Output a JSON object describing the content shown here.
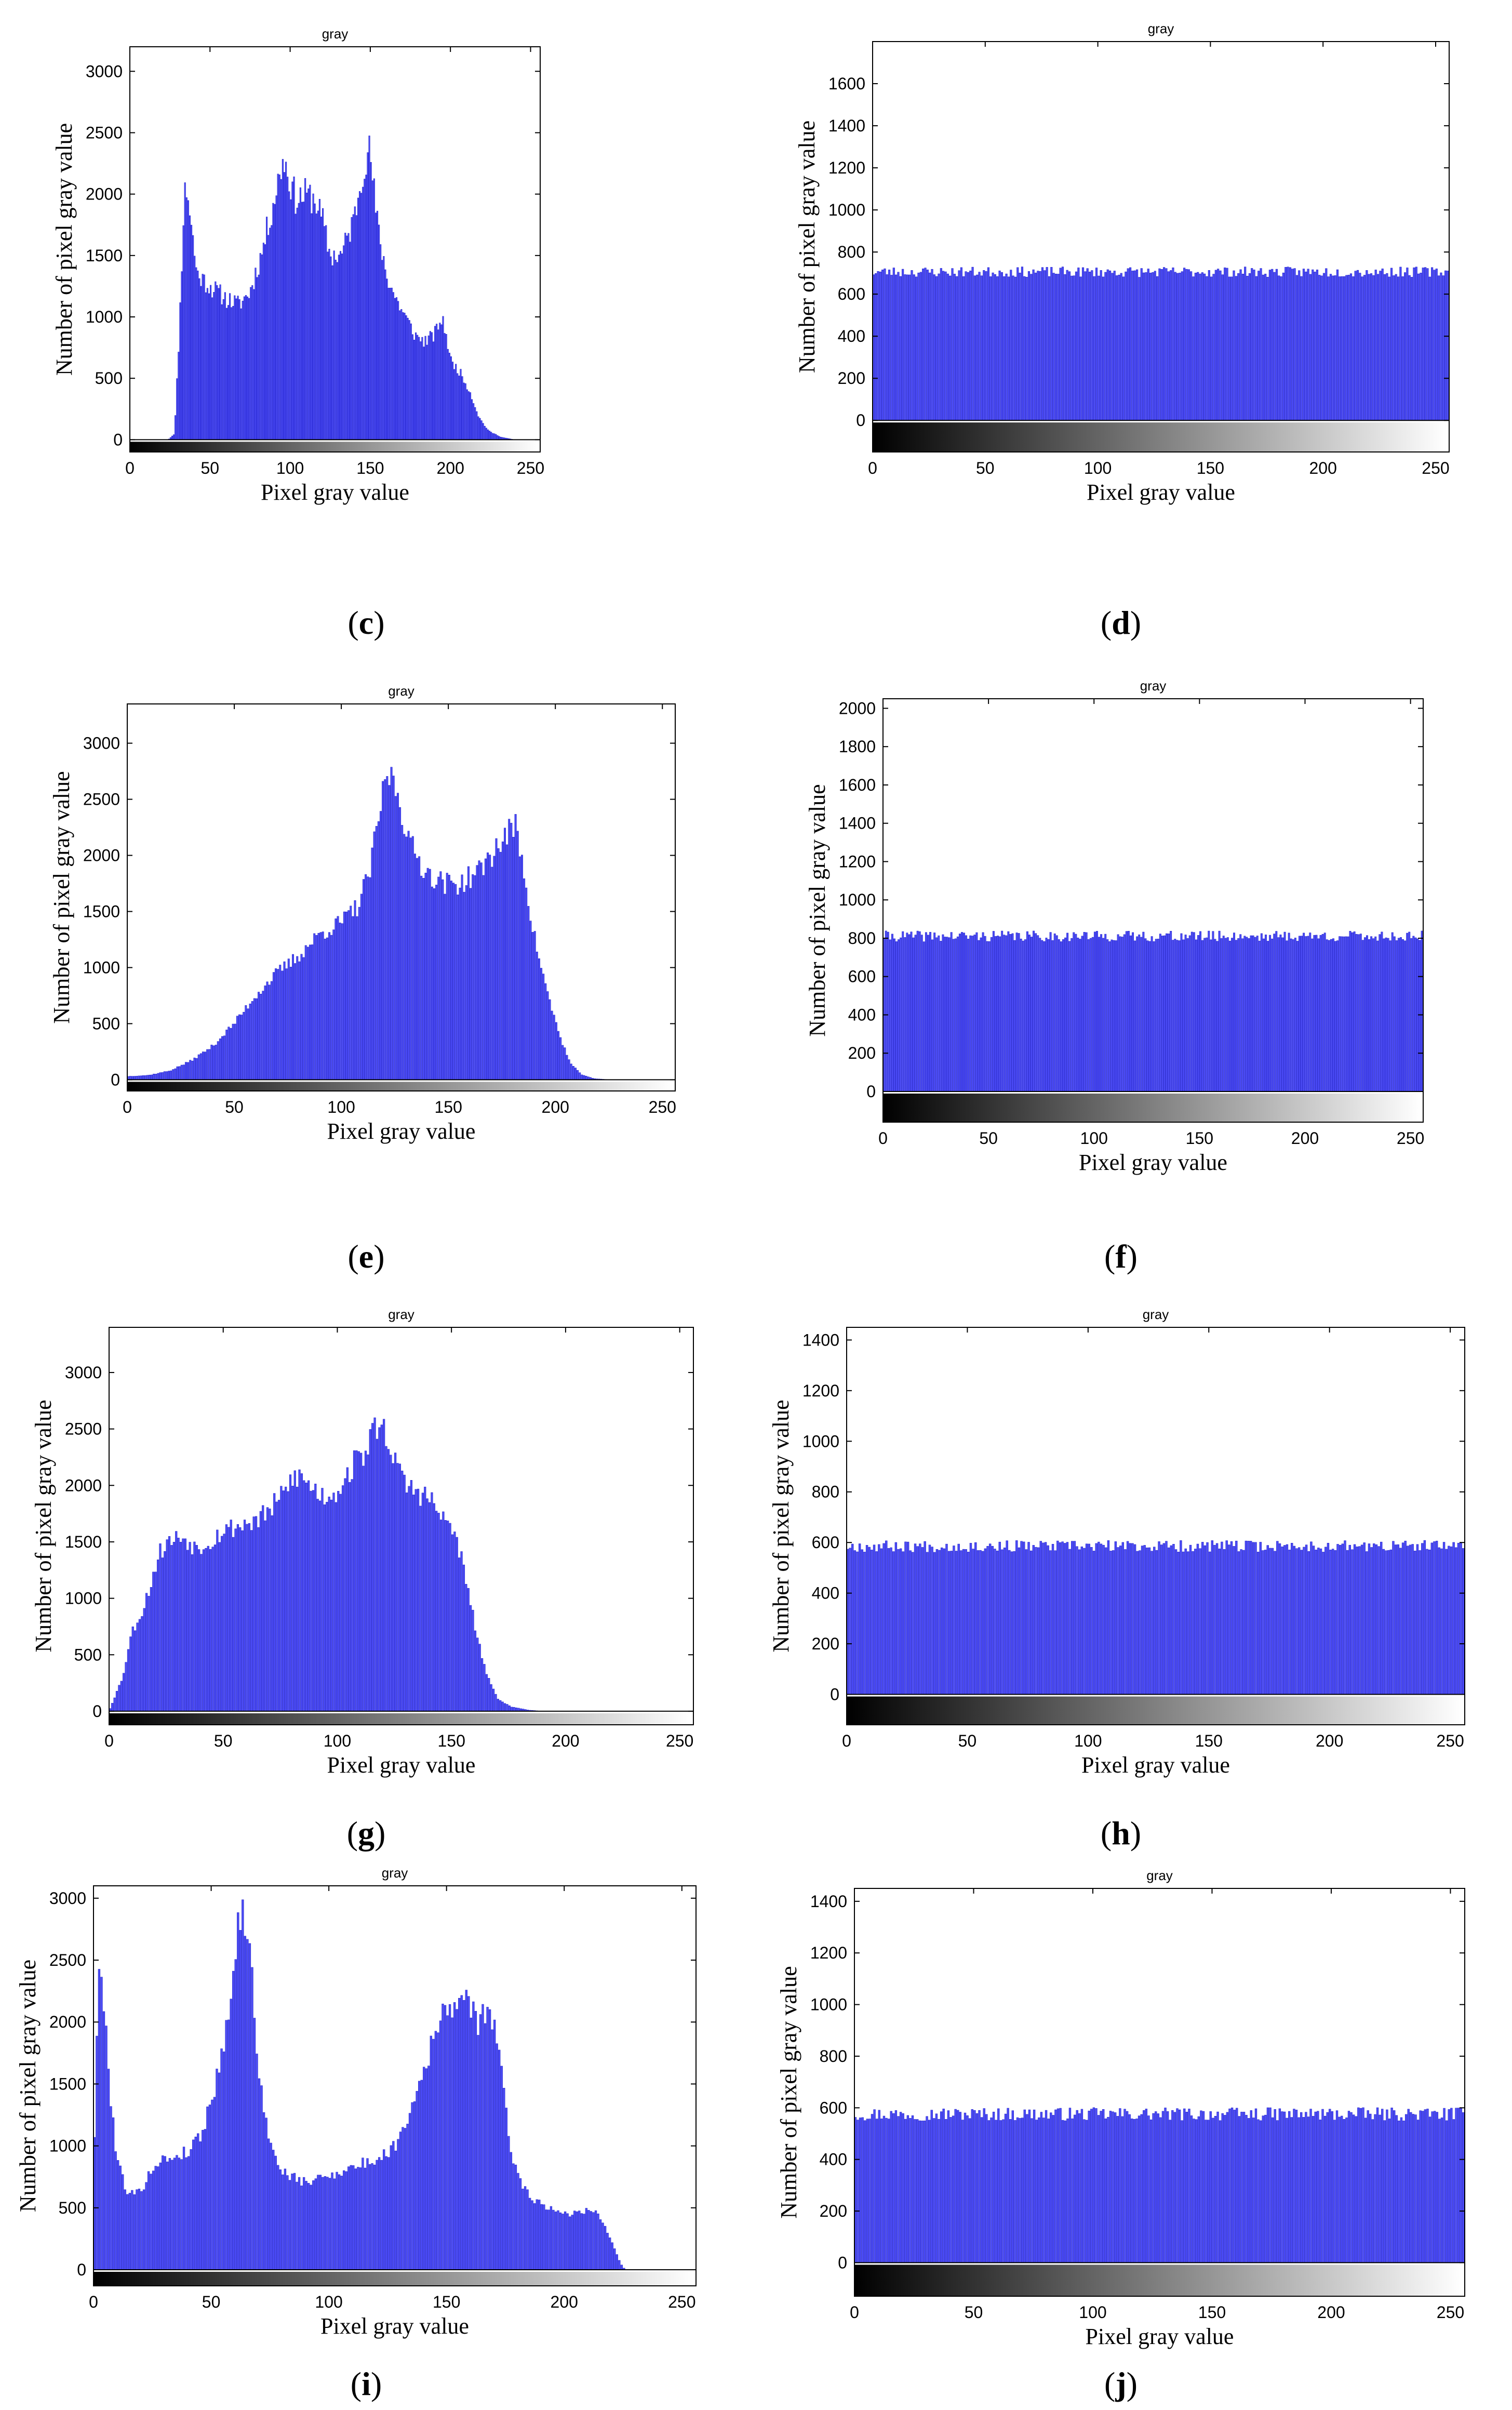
{
  "figure": {
    "panels": [
      "c",
      "d",
      "e",
      "f",
      "g",
      "h",
      "i",
      "j"
    ]
  },
  "colors": {
    "bar": "#4b4bf5",
    "bar_edge": "#1e1ec8",
    "axis": "#000000"
  },
  "chart_data": [
    {
      "id": "c",
      "type": "bar",
      "title": "gray",
      "xlabel": "Pixel gray value",
      "ylabel": "Number of pixel gray value",
      "xlim": [
        0,
        256
      ],
      "ylim": [
        -100,
        3200
      ],
      "xticks": [
        0,
        50,
        100,
        150,
        200,
        250
      ],
      "yticks": [
        0,
        500,
        1000,
        1500,
        2000,
        2500,
        3000
      ],
      "profile": [
        [
          0,
          0
        ],
        [
          24,
          0
        ],
        [
          28,
          50
        ],
        [
          31,
          900
        ],
        [
          34,
          2000
        ],
        [
          36,
          2050
        ],
        [
          38,
          1800
        ],
        [
          42,
          1350
        ],
        [
          50,
          1250
        ],
        [
          60,
          1150
        ],
        [
          68,
          1100
        ],
        [
          75,
          1200
        ],
        [
          82,
          1500
        ],
        [
          90,
          1950
        ],
        [
          96,
          2300
        ],
        [
          100,
          2100
        ],
        [
          104,
          1950
        ],
        [
          110,
          2000
        ],
        [
          116,
          1950
        ],
        [
          120,
          1800
        ],
        [
          125,
          1500
        ],
        [
          132,
          1500
        ],
        [
          140,
          1800
        ],
        [
          146,
          2250
        ],
        [
          150,
          2350
        ],
        [
          154,
          1800
        ],
        [
          160,
          1350
        ],
        [
          166,
          1150
        ],
        [
          172,
          1000
        ],
        [
          178,
          850
        ],
        [
          184,
          800
        ],
        [
          190,
          850
        ],
        [
          194,
          980
        ],
        [
          197,
          900
        ],
        [
          200,
          650
        ],
        [
          206,
          550
        ],
        [
          212,
          400
        ],
        [
          218,
          180
        ],
        [
          224,
          70
        ],
        [
          232,
          20
        ],
        [
          240,
          0
        ],
        [
          256,
          0
        ]
      ],
      "noise": 0.07,
      "seed": 11
    },
    {
      "id": "d",
      "type": "bar",
      "title": "gray",
      "xlabel": "Pixel gray value",
      "ylabel": "Number of pixel gray value",
      "xlim": [
        0,
        256
      ],
      "ylim": [
        -150,
        1800
      ],
      "xticks": [
        0,
        50,
        100,
        150,
        200,
        250
      ],
      "yticks": [
        0,
        200,
        400,
        600,
        800,
        1000,
        1200,
        1400,
        1600
      ],
      "profile": [
        [
          0,
          705
        ],
        [
          256,
          705
        ]
      ],
      "noise": 0.035,
      "seed": 23
    },
    {
      "id": "e",
      "type": "bar",
      "title": "gray",
      "xlabel": "Pixel gray value",
      "ylabel": "Number of pixel gray value",
      "xlim": [
        0,
        256
      ],
      "ylim": [
        -100,
        3350
      ],
      "xticks": [
        0,
        50,
        100,
        150,
        200,
        250
      ],
      "yticks": [
        0,
        500,
        1000,
        1500,
        2000,
        2500,
        3000
      ],
      "profile": [
        [
          0,
          30
        ],
        [
          10,
          40
        ],
        [
          20,
          80
        ],
        [
          30,
          170
        ],
        [
          40,
          300
        ],
        [
          50,
          500
        ],
        [
          60,
          750
        ],
        [
          70,
          950
        ],
        [
          80,
          1100
        ],
        [
          90,
          1300
        ],
        [
          100,
          1400
        ],
        [
          108,
          1550
        ],
        [
          114,
          1900
        ],
        [
          118,
          2400
        ],
        [
          122,
          2750
        ],
        [
          126,
          2600
        ],
        [
          132,
          2100
        ],
        [
          140,
          1850
        ],
        [
          148,
          1750
        ],
        [
          156,
          1750
        ],
        [
          164,
          1850
        ],
        [
          172,
          2050
        ],
        [
          178,
          2200
        ],
        [
          182,
          2250
        ],
        [
          186,
          1800
        ],
        [
          190,
          1300
        ],
        [
          196,
          800
        ],
        [
          202,
          400
        ],
        [
          207,
          150
        ],
        [
          212,
          50
        ],
        [
          218,
          10
        ],
        [
          226,
          0
        ],
        [
          256,
          0
        ]
      ],
      "noise": 0.06,
      "seed": 37
    },
    {
      "id": "f",
      "type": "bar",
      "title": "gray",
      "xlabel": "Pixel gray value",
      "ylabel": "Number of pixel gray value",
      "xlim": [
        0,
        256
      ],
      "ylim": [
        -160,
        2050
      ],
      "xticks": [
        0,
        50,
        100,
        150,
        200,
        250
      ],
      "yticks": [
        0,
        200,
        400,
        600,
        800,
        1000,
        1200,
        1400,
        1600,
        1800,
        2000
      ],
      "profile": [
        [
          0,
          810
        ],
        [
          256,
          810
        ]
      ],
      "noise": 0.035,
      "seed": 41
    },
    {
      "id": "g",
      "type": "bar",
      "title": "gray",
      "xlabel": "Pixel gray value",
      "ylabel": "Number of pixel gray value",
      "xlim": [
        0,
        256
      ],
      "ylim": [
        -120,
        3400
      ],
      "xticks": [
        0,
        50,
        100,
        150,
        200,
        250
      ],
      "yticks": [
        0,
        500,
        1000,
        1500,
        2000,
        2500,
        3000
      ],
      "profile": [
        [
          0,
          0
        ],
        [
          2,
          100
        ],
        [
          6,
          300
        ],
        [
          10,
          700
        ],
        [
          14,
          850
        ],
        [
          18,
          1100
        ],
        [
          22,
          1400
        ],
        [
          26,
          1500
        ],
        [
          32,
          1550
        ],
        [
          38,
          1450
        ],
        [
          44,
          1500
        ],
        [
          50,
          1600
        ],
        [
          58,
          1650
        ],
        [
          66,
          1700
        ],
        [
          74,
          1850
        ],
        [
          82,
          2100
        ],
        [
          88,
          2000
        ],
        [
          94,
          1900
        ],
        [
          100,
          1950
        ],
        [
          106,
          2150
        ],
        [
          112,
          2300
        ],
        [
          118,
          2550
        ],
        [
          122,
          2450
        ],
        [
          128,
          2050
        ],
        [
          134,
          1950
        ],
        [
          140,
          1900
        ],
        [
          146,
          1700
        ],
        [
          150,
          1650
        ],
        [
          154,
          1400
        ],
        [
          158,
          1000
        ],
        [
          162,
          600
        ],
        [
          166,
          300
        ],
        [
          170,
          120
        ],
        [
          176,
          40
        ],
        [
          184,
          10
        ],
        [
          190,
          0
        ],
        [
          256,
          0
        ]
      ],
      "noise": 0.06,
      "seed": 53
    },
    {
      "id": "h",
      "type": "bar",
      "title": "gray",
      "xlabel": "Pixel gray value",
      "ylabel": "Number of pixel gray value",
      "xlim": [
        0,
        256
      ],
      "ylim": [
        -120,
        1450
      ],
      "xticks": [
        0,
        50,
        100,
        150,
        200,
        250
      ],
      "yticks": [
        0,
        200,
        400,
        600,
        800,
        1000,
        1200,
        1400
      ],
      "profile": [
        [
          0,
          585
        ],
        [
          256,
          585
        ]
      ],
      "noise": 0.04,
      "seed": 67
    },
    {
      "id": "i",
      "type": "bar",
      "title": "gray",
      "xlabel": "Pixel gray value",
      "ylabel": "Number of pixel gray value",
      "xlim": [
        0,
        256
      ],
      "ylim": [
        -130,
        3100
      ],
      "xticks": [
        0,
        50,
        100,
        150,
        200,
        250
      ],
      "yticks": [
        0,
        500,
        1000,
        1500,
        2000,
        2500,
        3000
      ],
      "profile": [
        [
          0,
          700
        ],
        [
          2,
          2300
        ],
        [
          4,
          2350
        ],
        [
          7,
          1500
        ],
        [
          10,
          900
        ],
        [
          14,
          650
        ],
        [
          18,
          600
        ],
        [
          22,
          700
        ],
        [
          26,
          850
        ],
        [
          32,
          900
        ],
        [
          40,
          950
        ],
        [
          46,
          1100
        ],
        [
          52,
          1500
        ],
        [
          56,
          1900
        ],
        [
          60,
          2500
        ],
        [
          63,
          2950
        ],
        [
          66,
          2700
        ],
        [
          70,
          1700
        ],
        [
          74,
          1100
        ],
        [
          78,
          850
        ],
        [
          84,
          750
        ],
        [
          90,
          700
        ],
        [
          98,
          750
        ],
        [
          106,
          800
        ],
        [
          114,
          850
        ],
        [
          122,
          900
        ],
        [
          128,
          1000
        ],
        [
          134,
          1250
        ],
        [
          140,
          1600
        ],
        [
          146,
          1950
        ],
        [
          152,
          2150
        ],
        [
          156,
          2200
        ],
        [
          160,
          2100
        ],
        [
          164,
          2000
        ],
        [
          168,
          2150
        ],
        [
          171,
          1900
        ],
        [
          174,
          1500
        ],
        [
          178,
          900
        ],
        [
          182,
          700
        ],
        [
          188,
          550
        ],
        [
          196,
          480
        ],
        [
          204,
          450
        ],
        [
          212,
          500
        ],
        [
          216,
          400
        ],
        [
          220,
          250
        ],
        [
          224,
          50
        ],
        [
          226,
          0
        ],
        [
          256,
          0
        ]
      ],
      "noise": 0.06,
      "seed": 79
    },
    {
      "id": "j",
      "type": "bar",
      "title": "gray",
      "xlabel": "Pixel gray value",
      "ylabel": "Number of pixel gray value",
      "xlim": [
        0,
        256
      ],
      "ylim": [
        -130,
        1450
      ],
      "xticks": [
        0,
        50,
        100,
        150,
        200,
        250
      ],
      "yticks": [
        0,
        200,
        400,
        600,
        800,
        1000,
        1200,
        1400
      ],
      "profile": [
        [
          0,
          575
        ],
        [
          256,
          575
        ]
      ],
      "noise": 0.045,
      "seed": 97
    }
  ]
}
